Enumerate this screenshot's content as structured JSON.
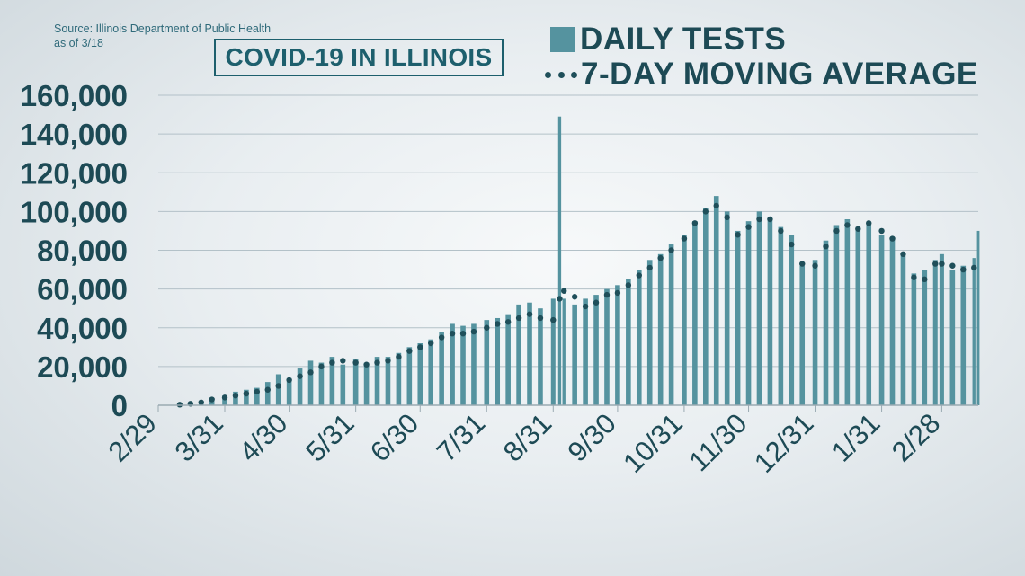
{
  "source_line1": "Source: Illinois Department of Public Health",
  "source_line2": "as of 3/18",
  "title": "COVID-19 IN ILLINOIS",
  "legend": {
    "bars_label": "DAILY TESTS",
    "avg_label": "7-DAY MOVING AVERAGE"
  },
  "colors": {
    "bar": "#55939f",
    "dot": "#1f4f5a",
    "grid": "#b3c1c8",
    "text": "#1d4a55"
  },
  "chart_data": {
    "type": "bar",
    "title": "COVID-19 IN ILLINOIS",
    "xlabel": "",
    "ylabel": "",
    "ylim": [
      0,
      160000
    ],
    "yticks": [
      0,
      20000,
      40000,
      60000,
      80000,
      100000,
      120000,
      140000,
      160000
    ],
    "ytick_labels": [
      "0",
      "20,000",
      "40,000",
      "60,000",
      "80,000",
      "100,000",
      "120,000",
      "140,000",
      "160,000"
    ],
    "xtick_labels": [
      "2/29",
      "3/31",
      "4/30",
      "5/31",
      "6/30",
      "7/31",
      "8/31",
      "9/30",
      "10/31",
      "11/30",
      "12/31",
      "1/31",
      "2/28"
    ],
    "grid": true,
    "series": [
      {
        "name": "DAILY TESTS",
        "type": "bar",
        "points": [
          [
            "2020-03-10",
            500
          ],
          [
            "2020-03-15",
            1000
          ],
          [
            "2020-03-20",
            2200
          ],
          [
            "2020-03-25",
            3500
          ],
          [
            "2020-03-31",
            5000
          ],
          [
            "2020-04-05",
            7000
          ],
          [
            "2020-04-10",
            8000
          ],
          [
            "2020-04-15",
            9000
          ],
          [
            "2020-04-20",
            12000
          ],
          [
            "2020-04-25",
            16000
          ],
          [
            "2020-04-30",
            14000
          ],
          [
            "2020-05-05",
            19000
          ],
          [
            "2020-05-10",
            23000
          ],
          [
            "2020-05-15",
            22000
          ],
          [
            "2020-05-20",
            25000
          ],
          [
            "2020-05-25",
            21000
          ],
          [
            "2020-05-31",
            24000
          ],
          [
            "2020-06-05",
            22000
          ],
          [
            "2020-06-10",
            25000
          ],
          [
            "2020-06-15",
            25000
          ],
          [
            "2020-06-20",
            27000
          ],
          [
            "2020-06-25",
            30000
          ],
          [
            "2020-06-30",
            32000
          ],
          [
            "2020-07-05",
            34000
          ],
          [
            "2020-07-10",
            38000
          ],
          [
            "2020-07-15",
            42000
          ],
          [
            "2020-07-20",
            41000
          ],
          [
            "2020-07-25",
            42000
          ],
          [
            "2020-07-31",
            44000
          ],
          [
            "2020-08-05",
            45000
          ],
          [
            "2020-08-10",
            47000
          ],
          [
            "2020-08-15",
            52000
          ],
          [
            "2020-08-20",
            53000
          ],
          [
            "2020-08-25",
            50000
          ],
          [
            "2020-08-31",
            55000
          ],
          [
            "2020-09-03",
            149000
          ],
          [
            "2020-09-05",
            55000
          ],
          [
            "2020-09-10",
            52000
          ],
          [
            "2020-09-15",
            55000
          ],
          [
            "2020-09-20",
            57000
          ],
          [
            "2020-09-25",
            60000
          ],
          [
            "2020-09-30",
            62000
          ],
          [
            "2020-10-05",
            65000
          ],
          [
            "2020-10-10",
            70000
          ],
          [
            "2020-10-15",
            75000
          ],
          [
            "2020-10-20",
            78000
          ],
          [
            "2020-10-25",
            83000
          ],
          [
            "2020-10-31",
            88000
          ],
          [
            "2020-11-05",
            95000
          ],
          [
            "2020-11-10",
            102000
          ],
          [
            "2020-11-15",
            108000
          ],
          [
            "2020-11-20",
            100000
          ],
          [
            "2020-11-25",
            90000
          ],
          [
            "2020-11-30",
            95000
          ],
          [
            "2020-12-05",
            100000
          ],
          [
            "2020-12-10",
            96000
          ],
          [
            "2020-12-15",
            92000
          ],
          [
            "2020-12-20",
            88000
          ],
          [
            "2020-12-25",
            72000
          ],
          [
            "2020-12-31",
            75000
          ],
          [
            "2021-01-05",
            85000
          ],
          [
            "2021-01-10",
            93000
          ],
          [
            "2021-01-15",
            96000
          ],
          [
            "2021-01-20",
            92000
          ],
          [
            "2021-01-25",
            94000
          ],
          [
            "2021-01-31",
            88000
          ],
          [
            "2021-02-05",
            86000
          ],
          [
            "2021-02-10",
            78000
          ],
          [
            "2021-02-15",
            68000
          ],
          [
            "2021-02-20",
            70000
          ],
          [
            "2021-02-25",
            75000
          ],
          [
            "2021-02-28",
            78000
          ],
          [
            "2021-03-05",
            70000
          ],
          [
            "2021-03-10",
            72000
          ],
          [
            "2021-03-15",
            76000
          ],
          [
            "2021-03-17",
            90000
          ]
        ]
      },
      {
        "name": "7-DAY MOVING AVERAGE",
        "type": "dots",
        "points": [
          [
            "2020-03-10",
            300
          ],
          [
            "2020-03-15",
            800
          ],
          [
            "2020-03-20",
            1500
          ],
          [
            "2020-03-25",
            3000
          ],
          [
            "2020-03-31",
            4000
          ],
          [
            "2020-04-05",
            5000
          ],
          [
            "2020-04-10",
            6000
          ],
          [
            "2020-04-15",
            7000
          ],
          [
            "2020-04-20",
            8000
          ],
          [
            "2020-04-25",
            10000
          ],
          [
            "2020-04-30",
            13000
          ],
          [
            "2020-05-05",
            15000
          ],
          [
            "2020-05-10",
            17000
          ],
          [
            "2020-05-15",
            20000
          ],
          [
            "2020-05-20",
            22000
          ],
          [
            "2020-05-25",
            23000
          ],
          [
            "2020-05-31",
            22000
          ],
          [
            "2020-06-05",
            21000
          ],
          [
            "2020-06-10",
            22000
          ],
          [
            "2020-06-15",
            23000
          ],
          [
            "2020-06-20",
            25000
          ],
          [
            "2020-06-25",
            28000
          ],
          [
            "2020-06-30",
            30000
          ],
          [
            "2020-07-05",
            32000
          ],
          [
            "2020-07-10",
            35000
          ],
          [
            "2020-07-15",
            37000
          ],
          [
            "2020-07-20",
            37000
          ],
          [
            "2020-07-25",
            38000
          ],
          [
            "2020-07-31",
            40000
          ],
          [
            "2020-08-05",
            42000
          ],
          [
            "2020-08-10",
            43000
          ],
          [
            "2020-08-15",
            45000
          ],
          [
            "2020-08-20",
            47000
          ],
          [
            "2020-08-25",
            45000
          ],
          [
            "2020-08-31",
            44000
          ],
          [
            "2020-09-03",
            55000
          ],
          [
            "2020-09-05",
            59000
          ],
          [
            "2020-09-10",
            56000
          ],
          [
            "2020-09-15",
            51000
          ],
          [
            "2020-09-20",
            53000
          ],
          [
            "2020-09-25",
            57000
          ],
          [
            "2020-09-30",
            58000
          ],
          [
            "2020-10-05",
            62000
          ],
          [
            "2020-10-10",
            67000
          ],
          [
            "2020-10-15",
            71000
          ],
          [
            "2020-10-20",
            76000
          ],
          [
            "2020-10-25",
            80000
          ],
          [
            "2020-10-31",
            86000
          ],
          [
            "2020-11-05",
            94000
          ],
          [
            "2020-11-10",
            100000
          ],
          [
            "2020-11-15",
            103000
          ],
          [
            "2020-11-20",
            97000
          ],
          [
            "2020-11-25",
            88000
          ],
          [
            "2020-11-30",
            92000
          ],
          [
            "2020-12-05",
            96000
          ],
          [
            "2020-12-10",
            96000
          ],
          [
            "2020-12-15",
            90000
          ],
          [
            "2020-12-20",
            83000
          ],
          [
            "2020-12-25",
            73000
          ],
          [
            "2020-12-31",
            72000
          ],
          [
            "2021-01-05",
            82000
          ],
          [
            "2021-01-10",
            90000
          ],
          [
            "2021-01-15",
            93000
          ],
          [
            "2021-01-20",
            91000
          ],
          [
            "2021-01-25",
            94000
          ],
          [
            "2021-01-31",
            90000
          ],
          [
            "2021-02-05",
            86000
          ],
          [
            "2021-02-10",
            78000
          ],
          [
            "2021-02-15",
            66000
          ],
          [
            "2021-02-20",
            65000
          ],
          [
            "2021-02-25",
            73000
          ],
          [
            "2021-02-28",
            73000
          ],
          [
            "2021-03-05",
            72000
          ],
          [
            "2021-03-10",
            70000
          ],
          [
            "2021-03-15",
            71000
          ]
        ]
      }
    ]
  }
}
